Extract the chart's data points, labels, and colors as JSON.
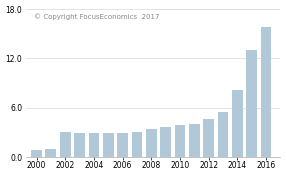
{
  "years": [
    2000,
    2001,
    2002,
    2003,
    2004,
    2005,
    2006,
    2007,
    2008,
    2009,
    2010,
    2011,
    2012,
    2013,
    2014,
    2015,
    2016
  ],
  "values": [
    0.9,
    1.0,
    3.1,
    2.9,
    2.9,
    2.9,
    3.0,
    3.1,
    3.4,
    3.7,
    3.9,
    4.1,
    4.6,
    5.5,
    8.2,
    13.0,
    15.8
  ],
  "bar_color": "#b0c8d8",
  "background_color": "#ffffff",
  "watermark": "© Copyright FocusEconomics  2017",
  "ylim": [
    0.0,
    18.0
  ],
  "yticks": [
    0.0,
    6.0,
    12.0,
    18.0
  ],
  "xtick_years": [
    2000,
    2002,
    2004,
    2006,
    2008,
    2010,
    2012,
    2014,
    2016
  ],
  "grid_color": "#d8d8d8",
  "watermark_fontsize": 5.0,
  "tick_fontsize": 5.5
}
